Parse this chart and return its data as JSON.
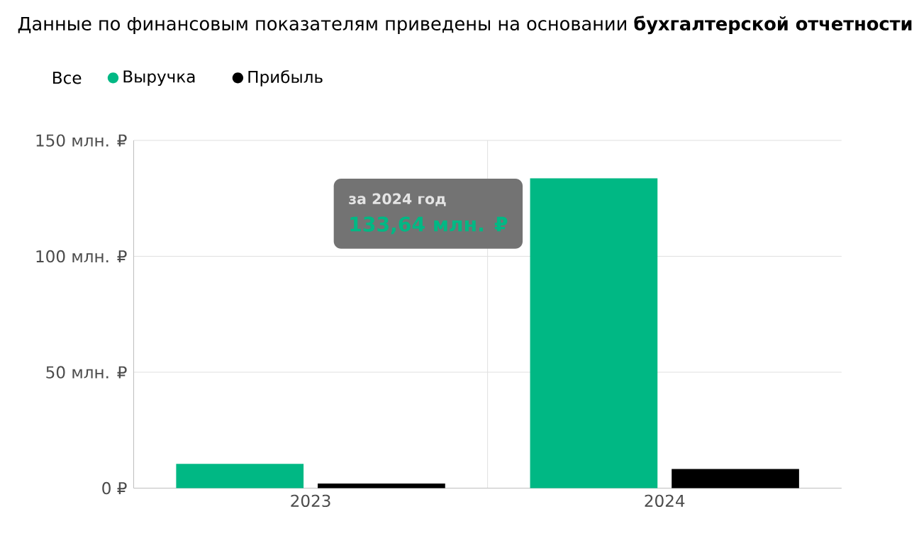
{
  "chart_data": {
    "type": "bar",
    "title": "Данные по финансовым показателям приведены на основании **бухгалтерской отчетности**",
    "categories": [
      "2023",
      "2024"
    ],
    "series": [
      {
        "name": "Выручка",
        "color": "#00b884",
        "values": [
          10.5,
          133.64
        ]
      },
      {
        "name": "Прибыль",
        "color": "#000000",
        "values": [
          2,
          8.3
        ]
      }
    ],
    "ylim": [
      0,
      150
    ],
    "yticks": [
      {
        "value": 0,
        "label": "0 ₽"
      },
      {
        "value": 50,
        "label": "50 млн. ₽"
      },
      {
        "value": 100,
        "label": "100 млн. ₽"
      },
      {
        "value": 150,
        "label": "150 млн. ₽"
      }
    ],
    "grid": "y",
    "legend": "top left",
    "annotations": [
      "Все",
      "за 2024 год",
      "133,64 млн. ₽"
    ]
  }
}
